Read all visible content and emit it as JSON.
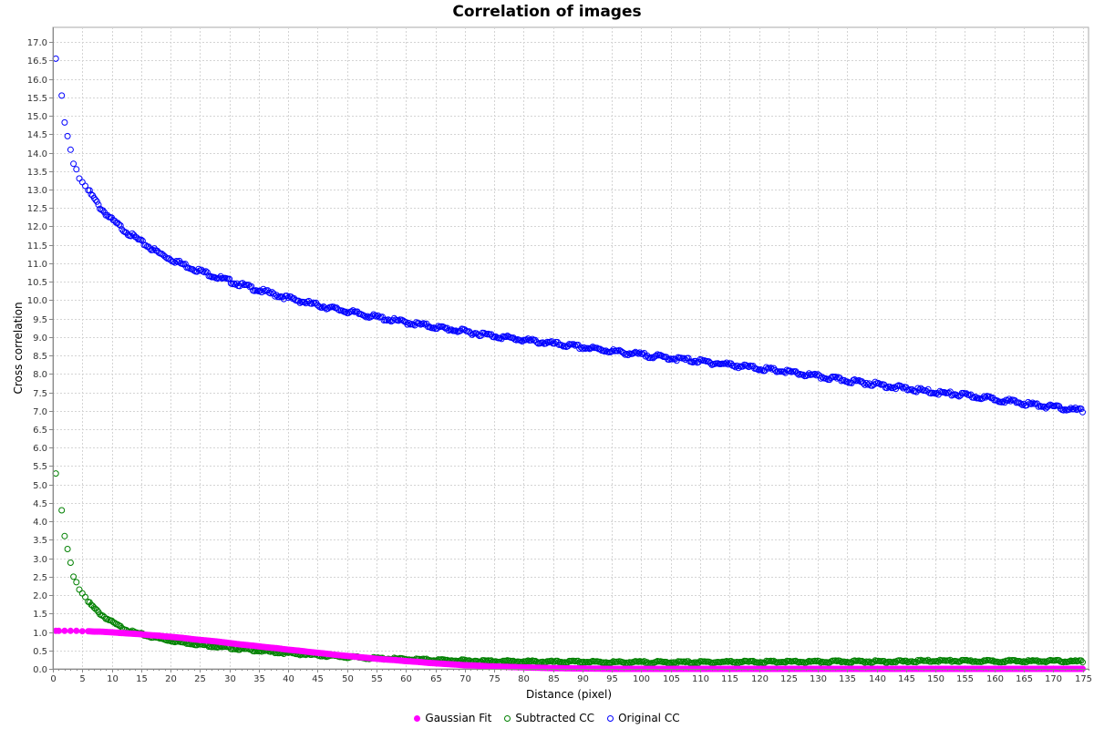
{
  "chart_data": {
    "type": "scatter",
    "title": "Correlation of images",
    "xlabel": "Distance (pixel)",
    "ylabel": "Cross correlation",
    "xlim": [
      0,
      176
    ],
    "ylim": [
      0,
      17.4
    ],
    "xtick_step": 5,
    "ytick_step": 0.5,
    "grid": true,
    "legend_position": "bottom-center",
    "series": [
      {
        "name": "Gaussian Fit",
        "marker": "filled-circle",
        "color": "#ff00ff",
        "points": [
          [
            0.5,
            1.03
          ],
          [
            1,
            1.03
          ],
          [
            2,
            1.03
          ],
          [
            3,
            1.03
          ],
          [
            4,
            1.03
          ],
          [
            5,
            1.02
          ],
          [
            6,
            1.02
          ],
          [
            7,
            1.01
          ],
          [
            8,
            1.01
          ],
          [
            9,
            1.0
          ],
          [
            10,
            0.99
          ],
          [
            11,
            0.98
          ],
          [
            12,
            0.97
          ],
          [
            13,
            0.96
          ],
          [
            14,
            0.95
          ],
          [
            15,
            0.94
          ],
          [
            16,
            0.92
          ],
          [
            17,
            0.91
          ],
          [
            18,
            0.9
          ],
          [
            19,
            0.88
          ],
          [
            20,
            0.87
          ],
          [
            22,
            0.84
          ],
          [
            24,
            0.8
          ],
          [
            26,
            0.77
          ],
          [
            28,
            0.74
          ],
          [
            30,
            0.7
          ],
          [
            32,
            0.66
          ],
          [
            34,
            0.63
          ],
          [
            36,
            0.59
          ],
          [
            38,
            0.56
          ],
          [
            40,
            0.52
          ],
          [
            42,
            0.49
          ],
          [
            44,
            0.45
          ],
          [
            46,
            0.42
          ],
          [
            48,
            0.38
          ],
          [
            50,
            0.35
          ],
          [
            52,
            0.32
          ],
          [
            54,
            0.29
          ],
          [
            56,
            0.26
          ],
          [
            58,
            0.24
          ],
          [
            60,
            0.21
          ],
          [
            62,
            0.19
          ],
          [
            64,
            0.16
          ],
          [
            66,
            0.14
          ],
          [
            68,
            0.12
          ],
          [
            70,
            0.1
          ],
          [
            72,
            0.09
          ],
          [
            74,
            0.07
          ],
          [
            76,
            0.06
          ],
          [
            78,
            0.05
          ],
          [
            80,
            0.04
          ],
          [
            85,
            0.02
          ],
          [
            90,
            0.01
          ],
          [
            95,
            0.0
          ],
          [
            100,
            0.0
          ],
          [
            110,
            0.0
          ],
          [
            120,
            0.0
          ],
          [
            130,
            0.0
          ],
          [
            140,
            0.0
          ],
          [
            150,
            0.0
          ],
          [
            160,
            0.0
          ],
          [
            170,
            0.0
          ],
          [
            175,
            0.0
          ]
        ]
      },
      {
        "name": "Subtracted CC",
        "marker": "hollow-circle",
        "color": "#008000",
        "points": [
          [
            0.5,
            5.3
          ],
          [
            1.5,
            4.3
          ],
          [
            2,
            3.6
          ],
          [
            2.5,
            3.25
          ],
          [
            3,
            2.88
          ],
          [
            3.5,
            2.5
          ],
          [
            4,
            2.35
          ],
          [
            4.5,
            2.15
          ],
          [
            5,
            2.05
          ],
          [
            5.5,
            1.95
          ],
          [
            6,
            1.82
          ],
          [
            7,
            1.65
          ],
          [
            8,
            1.5
          ],
          [
            9,
            1.38
          ],
          [
            10,
            1.28
          ],
          [
            11,
            1.18
          ],
          [
            12,
            1.1
          ],
          [
            13,
            1.03
          ],
          [
            14,
            0.98
          ],
          [
            15,
            0.94
          ],
          [
            16,
            0.9
          ],
          [
            17,
            0.86
          ],
          [
            18,
            0.83
          ],
          [
            19,
            0.8
          ],
          [
            20,
            0.77
          ],
          [
            22,
            0.72
          ],
          [
            24,
            0.68
          ],
          [
            26,
            0.64
          ],
          [
            28,
            0.6
          ],
          [
            30,
            0.57
          ],
          [
            32,
            0.54
          ],
          [
            34,
            0.51
          ],
          [
            36,
            0.48
          ],
          [
            38,
            0.45
          ],
          [
            40,
            0.43
          ],
          [
            42,
            0.4
          ],
          [
            44,
            0.38
          ],
          [
            46,
            0.36
          ],
          [
            48,
            0.34
          ],
          [
            50,
            0.32
          ],
          [
            52,
            0.31
          ],
          [
            54,
            0.29
          ],
          [
            56,
            0.28
          ],
          [
            58,
            0.27
          ],
          [
            60,
            0.26
          ],
          [
            65,
            0.24
          ],
          [
            70,
            0.22
          ],
          [
            75,
            0.21
          ],
          [
            80,
            0.2
          ],
          [
            85,
            0.19
          ],
          [
            90,
            0.19
          ],
          [
            95,
            0.18
          ],
          [
            100,
            0.18
          ],
          [
            105,
            0.18
          ],
          [
            110,
            0.18
          ],
          [
            115,
            0.19
          ],
          [
            120,
            0.19
          ],
          [
            125,
            0.19
          ],
          [
            130,
            0.19
          ],
          [
            135,
            0.2
          ],
          [
            140,
            0.2
          ],
          [
            145,
            0.2
          ],
          [
            150,
            0.22
          ],
          [
            155,
            0.21
          ],
          [
            160,
            0.21
          ],
          [
            165,
            0.21
          ],
          [
            170,
            0.21
          ],
          [
            175,
            0.2
          ]
        ]
      },
      {
        "name": "Original CC",
        "marker": "hollow-circle",
        "color": "#0000ff",
        "points": [
          [
            0.5,
            16.55
          ],
          [
            1.5,
            15.55
          ],
          [
            2,
            14.82
          ],
          [
            2.5,
            14.45
          ],
          [
            3,
            14.08
          ],
          [
            3.5,
            13.7
          ],
          [
            4,
            13.55
          ],
          [
            4.5,
            13.3
          ],
          [
            5,
            13.2
          ],
          [
            5.5,
            13.1
          ],
          [
            6,
            12.98
          ],
          [
            7,
            12.75
          ],
          [
            8,
            12.52
          ],
          [
            9,
            12.35
          ],
          [
            10,
            12.18
          ],
          [
            11,
            12.05
          ],
          [
            12,
            11.92
          ],
          [
            13,
            11.8
          ],
          [
            14,
            11.7
          ],
          [
            15,
            11.58
          ],
          [
            16,
            11.48
          ],
          [
            17,
            11.38
          ],
          [
            18,
            11.28
          ],
          [
            19,
            11.2
          ],
          [
            20,
            11.12
          ],
          [
            22,
            10.98
          ],
          [
            24,
            10.85
          ],
          [
            26,
            10.74
          ],
          [
            28,
            10.62
          ],
          [
            30,
            10.52
          ],
          [
            32,
            10.42
          ],
          [
            34,
            10.32
          ],
          [
            36,
            10.23
          ],
          [
            38,
            10.14
          ],
          [
            40,
            10.06
          ],
          [
            42,
            9.98
          ],
          [
            44,
            9.9
          ],
          [
            46,
            9.83
          ],
          [
            48,
            9.76
          ],
          [
            50,
            9.7
          ],
          [
            52,
            9.63
          ],
          [
            54,
            9.57
          ],
          [
            56,
            9.51
          ],
          [
            58,
            9.45
          ],
          [
            60,
            9.4
          ],
          [
            65,
            9.27
          ],
          [
            70,
            9.15
          ],
          [
            75,
            9.03
          ],
          [
            80,
            8.92
          ],
          [
            85,
            8.82
          ],
          [
            90,
            8.72
          ],
          [
            95,
            8.62
          ],
          [
            100,
            8.52
          ],
          [
            105,
            8.43
          ],
          [
            110,
            8.34
          ],
          [
            115,
            8.25
          ],
          [
            120,
            8.15
          ],
          [
            125,
            8.05
          ],
          [
            130,
            7.93
          ],
          [
            135,
            7.82
          ],
          [
            140,
            7.72
          ],
          [
            145,
            7.6
          ],
          [
            150,
            7.5
          ],
          [
            155,
            7.42
          ],
          [
            160,
            7.32
          ],
          [
            165,
            7.2
          ],
          [
            170,
            7.1
          ],
          [
            175,
            7.0
          ]
        ]
      }
    ]
  }
}
